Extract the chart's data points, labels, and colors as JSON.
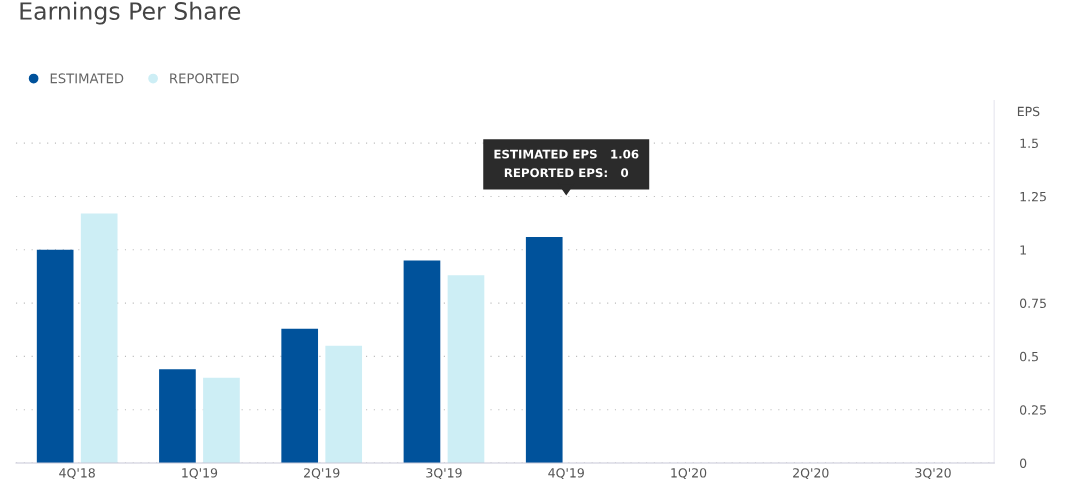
{
  "chart_data": {
    "type": "bar",
    "title": "Earnings Per Share",
    "ylabel": "EPS",
    "categories": [
      "4Q'18",
      "1Q'19",
      "2Q'19",
      "3Q'19",
      "4Q'19",
      "1Q'20",
      "2Q'20",
      "3Q'20"
    ],
    "series": [
      {
        "name": "ESTIMATED",
        "color": "#00529b",
        "values": [
          1.0,
          0.44,
          0.63,
          0.95,
          1.06,
          null,
          null,
          null
        ]
      },
      {
        "name": "REPORTED",
        "color": "#cdeef5",
        "values": [
          1.17,
          0.4,
          0.55,
          0.88,
          0,
          null,
          null,
          null
        ]
      }
    ],
    "ylim": [
      0,
      1.7
    ],
    "yticks": [
      0,
      0.25,
      0.5,
      0.75,
      1,
      1.25,
      1.5
    ],
    "grid": "y",
    "legend": "top left",
    "annotations": [
      "ESTIMATED EPS   1.06",
      "REPORTED EPS:   0"
    ]
  }
}
